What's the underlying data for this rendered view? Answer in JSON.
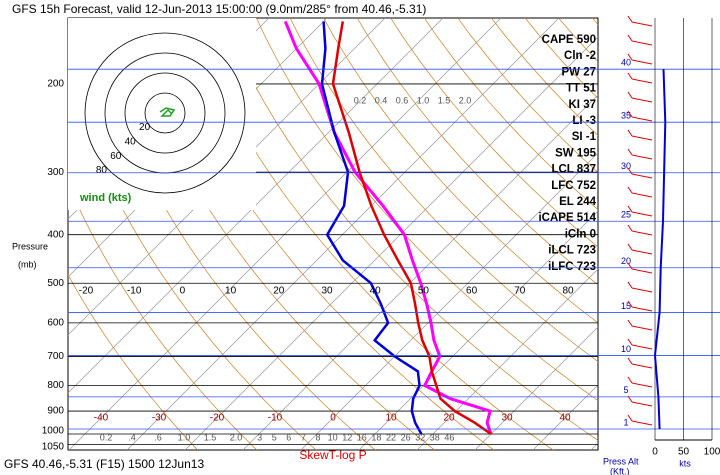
{
  "title": "GFS 15h Forecast, valid 12-Jun-2013 15:00:00 (9.0nm/285° from 40.46,-5.31)",
  "footer": "GFS 40.46,-5.31 (F15) 1500 12Jun13",
  "diagram_label": "SkewT-log P",
  "pressure_label": [
    "Pressure",
    "(mb)"
  ],
  "pressure_levels": [
    200,
    300,
    400,
    500,
    600,
    700,
    800,
    900,
    1000,
    1050
  ],
  "temperature_ticks": [
    -40,
    -30,
    -20,
    -10,
    0,
    10,
    20,
    30,
    40
  ],
  "upper_ticks": [
    -20,
    -10,
    0,
    10,
    20,
    30,
    40,
    50,
    60,
    70,
    80
  ],
  "mixing_ratio_top": [
    "0.2",
    "0.4",
    "0.6",
    "1.0",
    "1.5",
    "2.0"
  ],
  "mixing_ratio_bottom": [
    "0.2",
    ".4",
    ".6",
    "1.0",
    "1.5",
    "2.0",
    "3",
    "5",
    "6",
    "7",
    "8",
    "10",
    "12",
    "16",
    "18",
    "22",
    "26",
    "32",
    "38",
    "46"
  ],
  "indices": [
    "CAPE 590",
    "Cln -2",
    "PW 27",
    "TT 51",
    "KI 37",
    "LI -3",
    "SI -1",
    "SW 195",
    "LCL 837",
    "LFC 752",
    "EL 244",
    "iCAPE 514",
    "iCln 0",
    "iLCL 723",
    "iLFC 723"
  ],
  "hodograph": {
    "label": "wind (kts)",
    "rings": [
      20,
      40,
      60,
      80
    ]
  },
  "altitude_ticks": [
    1,
    5,
    10,
    15,
    20,
    25,
    30,
    35,
    40
  ],
  "altitude_label": [
    "Press Alt",
    "(Kft.)"
  ],
  "wind_axis": {
    "ticks": [
      0,
      50,
      100
    ],
    "label": "kts"
  },
  "sounding": {
    "pressure": [
      1000,
      950,
      900,
      850,
      800,
      750,
      700,
      650,
      600,
      550,
      500,
      450,
      400,
      350,
      300,
      250,
      200,
      170,
      150
    ],
    "temperature": [
      30,
      25.3,
      19.8,
      15.2,
      12.2,
      9,
      6,
      2,
      -1.7,
      -5.5,
      -9.8,
      -16,
      -22.8,
      -30,
      -37.8,
      -46.5,
      -57.6,
      -62.8,
      -66.7
    ],
    "dewpoint": [
      18,
      15,
      12.4,
      10.5,
      9.3,
      6.6,
      0,
      -6.2,
      -6.9,
      -11.4,
      -16.7,
      -25.5,
      -32.6,
      -34.7,
      -39.8,
      -49,
      -59.5,
      -65,
      -70
    ],
    "parcel": [
      30,
      27.4,
      25.9,
      16.9,
      10.2,
      9,
      7.8,
      4,
      0.5,
      -3.5,
      -8.1,
      -13.5,
      -19.3,
      -28,
      -38.6,
      -49,
      -60,
      -70,
      -76.6
    ],
    "colors": {
      "temperature": "#e00000",
      "dewpoint": "#0000dd",
      "parcel": "#ff00ff"
    }
  },
  "wind_profile": {
    "altitude": [
      1,
      5,
      10,
      15,
      20,
      25,
      30,
      35,
      40
    ],
    "speed": [
      8,
      6,
      0,
      8,
      10,
      14,
      16,
      18,
      15
    ],
    "color": "#0000dd"
  }
}
